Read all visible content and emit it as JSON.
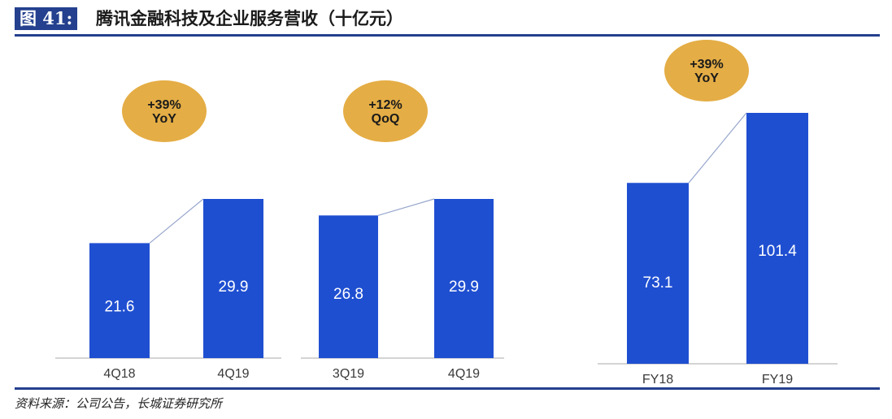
{
  "figure": {
    "label": "图 41:",
    "title": "腾讯金融科技及企业服务营收（十亿元）",
    "source": "资料来源：公司公告，长城证券研究所"
  },
  "colors": {
    "bar": "#1f4fd1",
    "badge": "#e4ad45",
    "axis": "#c6c6c6",
    "connector": "#97a6cc",
    "header": "#24408e"
  },
  "chart_data": [
    {
      "type": "bar",
      "categories": [
        "4Q18",
        "4Q19"
      ],
      "values": [
        21.6,
        29.9
      ],
      "badge": [
        "+39%",
        "YoY"
      ]
    },
    {
      "type": "bar",
      "categories": [
        "3Q19",
        "4Q19"
      ],
      "values": [
        26.8,
        29.9
      ],
      "badge": [
        "+12%",
        "QoQ"
      ]
    },
    {
      "type": "bar",
      "categories": [
        "FY18",
        "FY19"
      ],
      "values": [
        73.1,
        101.4
      ],
      "badge": [
        "+39%",
        "YoY"
      ]
    }
  ]
}
